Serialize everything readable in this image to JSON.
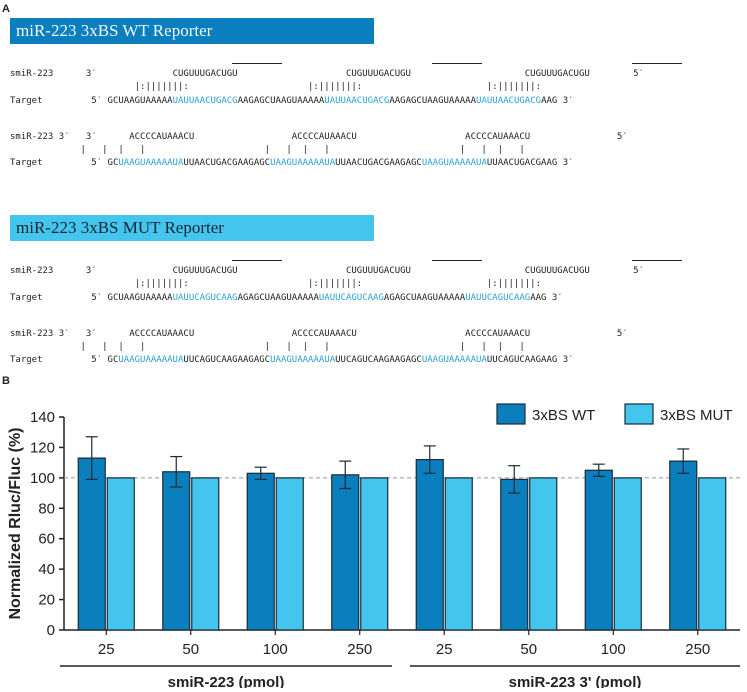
{
  "panelA": {
    "letter": "A",
    "wt_banner": "miR-223 3xBS WT Reporter",
    "mut_banner": "miR-223 3xBS MUT Reporter",
    "wt_block1": {
      "mirna_label": "smiR-223",
      "mirna_line": "      3′              CUGUUUGACUGU                    CUGUUUGACUGU                     CUGUUUGACUGU        5′",
      "pair_line": "                       |:|||||||:                      |:|||||||:                       |:|||||||:",
      "target_label": "Target",
      "target_parts": [
        {
          "t": "         5′ GCUAAGUAAAAA",
          "blue": false
        },
        {
          "t": "UAUUAACUGACG",
          "blue": true
        },
        {
          "t": "AAGAGCUAAGUAAAAA",
          "blue": false
        },
        {
          "t": "UAUUAACUGACG",
          "blue": true
        },
        {
          "t": "AAGAGCUAAGUAAAAA",
          "blue": false
        },
        {
          "t": "UAUUAACUGACG",
          "blue": true
        },
        {
          "t": "AAG 3′",
          "blue": false
        }
      ]
    },
    "wt_block2": {
      "mirna_label": "smiR-223 3′",
      "mirna_line": "   3′      ACCCCAUAAACU                  ACCCCAUAAACU                    ACCCCAUAAACU                5′",
      "pair_line": "             |   |  |   |                      |   |  |   |                        |   |  |   |",
      "target_label": "Target",
      "target_parts": [
        {
          "t": "         5′ GC",
          "blue": false
        },
        {
          "t": "UAAGUAAAAAUA",
          "blue": true
        },
        {
          "t": "UUAACUGACGAAGAGC",
          "blue": false
        },
        {
          "t": "UAAGUAAAAAUA",
          "blue": true
        },
        {
          "t": "UUAACUGACGAAGAGC",
          "blue": false
        },
        {
          "t": "UAAGUAAAAAUA",
          "blue": true
        },
        {
          "t": "UUAACUGACGAAG 3′",
          "blue": false
        }
      ]
    },
    "mut_block1": {
      "mirna_label": "smiR-223",
      "mirna_line": "      3′              CUGUUUGACUGU                    CUGUUUGACUGU                     CUGUUUGACUGU        5′",
      "pair_line": "                       |:|||||||:                      |:|||||||:                       |:|||||||:",
      "target_label": "Target",
      "target_parts": [
        {
          "t": "         5′ GCUAAGUAAAAA",
          "blue": false
        },
        {
          "t": "UAUUCAGUCAAG",
          "blue": true
        },
        {
          "t": "AGAGCUAAGUAAAAA",
          "blue": false
        },
        {
          "t": "UAUUCAGUCAAG",
          "blue": true
        },
        {
          "t": "AGAGCUAAGUAAAAA",
          "blue": false
        },
        {
          "t": "UAUUCAGUCAAG",
          "blue": true
        },
        {
          "t": "AAG 3′",
          "blue": false
        }
      ]
    },
    "mut_block2": {
      "mirna_label": "smiR-223 3′",
      "mirna_line": "   3′      ACCCCAUAAACU                  ACCCCAUAAACU                    ACCCCAUAAACU                5′",
      "pair_line": "             |   |  |   |                      |   |  |   |                        |   |  |   |",
      "target_label": "Target",
      "target_parts": [
        {
          "t": "         5′ GC",
          "blue": false
        },
        {
          "t": "UAAGUAAAAAUA",
          "blue": true
        },
        {
          "t": "UUCAGUCAAGAAGAGC",
          "blue": false
        },
        {
          "t": "UAAGUAAAAAUA",
          "blue": true
        },
        {
          "t": "UUCAGUCAAGAAGAGC",
          "blue": false
        },
        {
          "t": "UAAGUAAAAAUA",
          "blue": true
        },
        {
          "t": "UUCAGUCAAGAAG 3′",
          "blue": false
        }
      ]
    }
  },
  "panelB": {
    "letter": "B"
  },
  "chart_data": {
    "type": "bar",
    "ylabel": "Normalized Rluc/Fluc (%)",
    "ylim": [
      0,
      140
    ],
    "yticks": [
      0,
      20,
      40,
      60,
      80,
      100,
      120,
      140
    ],
    "reference_line": 100,
    "categories": [
      "25",
      "50",
      "100",
      "250",
      "25",
      "50",
      "100",
      "250"
    ],
    "groups": [
      {
        "label": "smiR-223 (pmol)",
        "span": [
          0,
          3
        ]
      },
      {
        "label": "smiR-223 3' (pmol)",
        "span": [
          4,
          7
        ]
      }
    ],
    "series": [
      {
        "name": "3xBS WT",
        "color": "#0b7fbe",
        "values": [
          113,
          104,
          103,
          102,
          112,
          99,
          105,
          111
        ],
        "errors": [
          14,
          10,
          4,
          9,
          9,
          9,
          4,
          8
        ]
      },
      {
        "name": "3xBS MUT",
        "color": "#44c5ee",
        "values": [
          100,
          100,
          100,
          100,
          100,
          100,
          100,
          100
        ],
        "errors": [
          0,
          0,
          0,
          0,
          0,
          0,
          0,
          0
        ]
      }
    ],
    "legend_position": "top-right"
  }
}
